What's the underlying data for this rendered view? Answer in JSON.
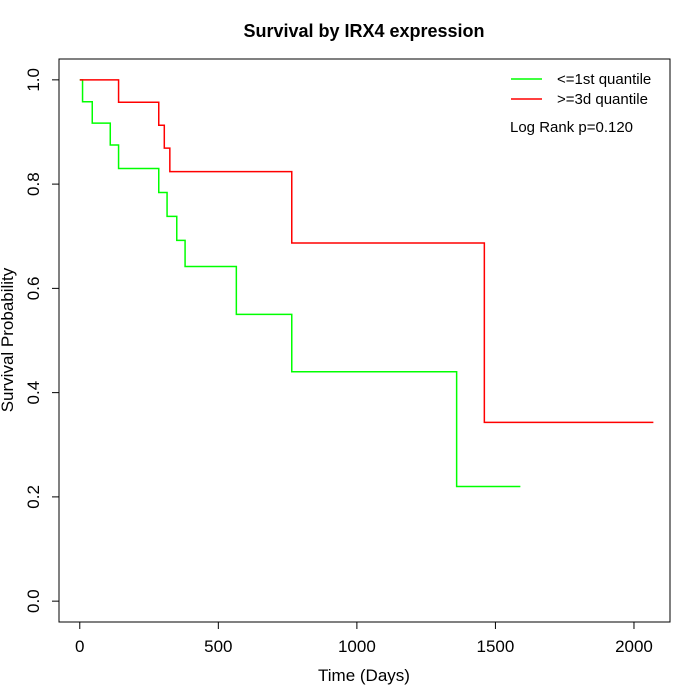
{
  "chart_data": {
    "type": "line",
    "title": "Survival by IRX4 expression",
    "xlabel": "Time (Days)",
    "ylabel": "Survival Probability",
    "xlim": [
      -75,
      2130
    ],
    "ylim": [
      -0.04,
      1.04
    ],
    "xticks": [
      0,
      500,
      1000,
      1500,
      2000
    ],
    "xtick_labels": [
      "0",
      "500",
      "1000",
      "1500",
      "2000"
    ],
    "yticks": [
      0.0,
      0.2,
      0.4,
      0.6,
      0.8,
      1.0
    ],
    "ytick_labels": [
      "0.0",
      "0.2",
      "0.4",
      "0.6",
      "0.8",
      "1.0"
    ],
    "legend_position": "top-right",
    "annotation": "Log Rank p=0.120",
    "series": [
      {
        "name": "<=1st quantile",
        "color": "#00ff00",
        "step": true,
        "x": [
          0,
          10,
          45,
          110,
          140,
          285,
          315,
          350,
          380,
          565,
          765,
          1360,
          1590
        ],
        "y": [
          1.0,
          0.958,
          0.917,
          0.875,
          0.83,
          0.784,
          0.738,
          0.692,
          0.642,
          0.55,
          0.44,
          0.22,
          0.22
        ]
      },
      {
        "name": ">=3d quantile",
        "color": "#ff0000",
        "step": true,
        "x": [
          0,
          140,
          285,
          305,
          325,
          765,
          1460,
          2070
        ],
        "y": [
          1.0,
          0.957,
          0.913,
          0.869,
          0.824,
          0.687,
          0.343,
          0.343
        ]
      }
    ]
  }
}
